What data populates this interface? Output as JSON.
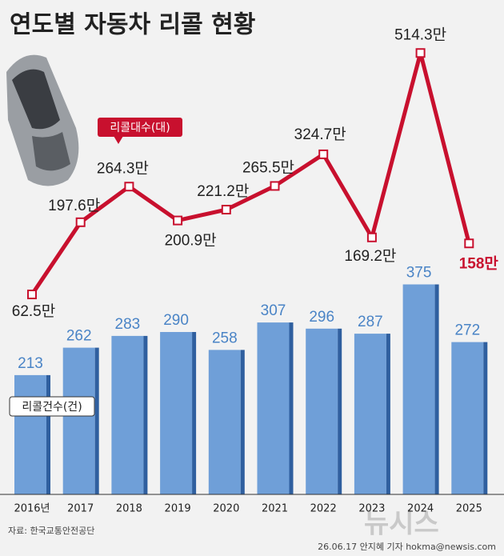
{
  "chart_data": {
    "type": "combo",
    "title": "연도별 자동차 리콜 현황",
    "categories": [
      "2016년",
      "2017",
      "2018",
      "2019",
      "2020",
      "2021",
      "2022",
      "2023",
      "2024",
      "2025"
    ],
    "series": [
      {
        "name": "리콜건수(건)",
        "type": "bar",
        "color": "#6f9fd8",
        "values": [
          213,
          262,
          283,
          290,
          258,
          307,
          296,
          287,
          375,
          272
        ]
      },
      {
        "name": "리콜대수(대)",
        "type": "line",
        "color": "#c8102e",
        "values": [
          62.5,
          197.6,
          264.3,
          200.9,
          221.2,
          265.5,
          324.7,
          169.2,
          514.3,
          158
        ],
        "value_labels": [
          "62.5만",
          "197.6만",
          "264.3만",
          "200.9만",
          "221.2만",
          "265.5만",
          "324.7만",
          "169.2만",
          "514.3만",
          "158만"
        ]
      }
    ],
    "source": "자료: 한국교통안전공단",
    "credit": "26.06.17 안지혜 기자 hokma@newsis.com",
    "watermark": "뉴시스"
  }
}
